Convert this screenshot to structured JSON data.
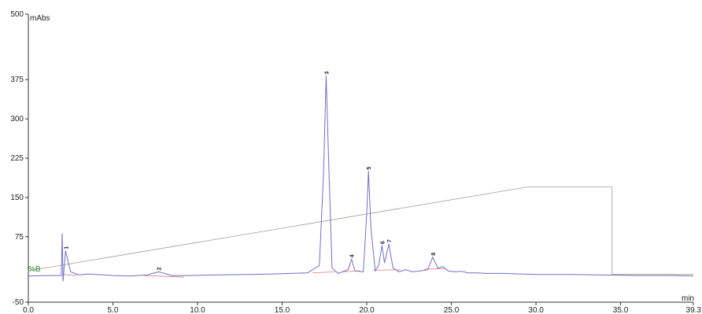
{
  "chart_data": {
    "type": "line",
    "y_unit_label": "mAbs",
    "x_unit_label": "min",
    "secondary_label": "%B",
    "xlim": [
      0.0,
      39.3
    ],
    "ylim": [
      -50,
      500
    ],
    "x_ticks": [
      {
        "value": 0.0,
        "label": "0.0"
      },
      {
        "value": 5.0,
        "label": "5.0"
      },
      {
        "value": 10.0,
        "label": "10.0"
      },
      {
        "value": 15.0,
        "label": "15.0"
      },
      {
        "value": 20.0,
        "label": "20.0"
      },
      {
        "value": 25.0,
        "label": "25.0"
      },
      {
        "value": 30.0,
        "label": "30.0"
      },
      {
        "value": 35.0,
        "label": "35.0"
      },
      {
        "value": 39.3,
        "label": "39.3"
      }
    ],
    "y_ticks": [
      {
        "value": -50,
        "label": "-50"
      },
      {
        "value": 75,
        "label": "75"
      },
      {
        "value": 150,
        "label": "150"
      },
      {
        "value": 225,
        "label": "225"
      },
      {
        "value": 300,
        "label": "300"
      },
      {
        "value": 375,
        "label": "375"
      },
      {
        "value": 500,
        "label": "500"
      }
    ],
    "colors": {
      "trace": "#6f6fc8",
      "gradient": "#a89a8e",
      "baseline": "#e07a7a",
      "pb_label": "#2a8a2a",
      "axis": "#333333"
    },
    "baseline_level": 0,
    "peaks": [
      {
        "label": "1",
        "time": 2.2,
        "height": 48
      },
      {
        "label": "2",
        "time": 7.7,
        "height": 8
      },
      {
        "label": "3",
        "time": 17.6,
        "height": 382
      },
      {
        "label": "4",
        "time": 19.1,
        "height": 32
      },
      {
        "label": "5",
        "time": 20.1,
        "height": 200
      },
      {
        "label": "6",
        "time": 20.9,
        "height": 58
      },
      {
        "label": "7",
        "time": 21.3,
        "height": 61
      },
      {
        "label": "8",
        "time": 23.9,
        "height": 36
      }
    ],
    "trace_points": [
      [
        0.0,
        0
      ],
      [
        1.0,
        1
      ],
      [
        1.95,
        1
      ],
      [
        2.0,
        82
      ],
      [
        2.05,
        -10
      ],
      [
        2.2,
        48
      ],
      [
        2.5,
        8
      ],
      [
        3.0,
        2
      ],
      [
        3.5,
        4
      ],
      [
        4.0,
        3
      ],
      [
        5.0,
        1
      ],
      [
        6.0,
        0
      ],
      [
        7.0,
        2
      ],
      [
        7.7,
        8
      ],
      [
        8.5,
        1
      ],
      [
        9.5,
        1
      ],
      [
        11.0,
        2
      ],
      [
        13.0,
        3
      ],
      [
        14.5,
        4
      ],
      [
        15.5,
        5
      ],
      [
        16.5,
        6
      ],
      [
        17.2,
        20
      ],
      [
        17.45,
        200
      ],
      [
        17.6,
        382
      ],
      [
        17.75,
        220
      ],
      [
        17.95,
        15
      ],
      [
        18.3,
        5
      ],
      [
        18.9,
        12
      ],
      [
        19.1,
        32
      ],
      [
        19.3,
        10
      ],
      [
        19.8,
        8
      ],
      [
        20.0,
        120
      ],
      [
        20.1,
        200
      ],
      [
        20.25,
        90
      ],
      [
        20.5,
        10
      ],
      [
        20.7,
        20
      ],
      [
        20.9,
        58
      ],
      [
        21.05,
        25
      ],
      [
        21.3,
        61
      ],
      [
        21.55,
        15
      ],
      [
        21.9,
        8
      ],
      [
        22.3,
        12
      ],
      [
        22.7,
        8
      ],
      [
        23.2,
        10
      ],
      [
        23.6,
        12
      ],
      [
        23.9,
        36
      ],
      [
        24.2,
        15
      ],
      [
        24.5,
        18
      ],
      [
        24.8,
        10
      ],
      [
        25.2,
        8
      ],
      [
        25.6,
        9
      ],
      [
        26.0,
        6
      ],
      [
        26.5,
        6
      ],
      [
        27.0,
        5
      ],
      [
        28.0,
        5
      ],
      [
        29.0,
        4
      ],
      [
        30.0,
        3
      ],
      [
        32.0,
        3
      ],
      [
        34.0,
        2
      ],
      [
        36.0,
        1
      ],
      [
        38.0,
        1
      ],
      [
        39.3,
        0
      ]
    ],
    "gradient_points": [
      [
        0.0,
        10
      ],
      [
        29.5,
        170
      ],
      [
        34.5,
        170
      ],
      [
        34.5,
        3
      ],
      [
        39.3,
        3
      ]
    ],
    "baseline_segments": [
      [
        [
          2.05,
          3
        ],
        [
          2.9,
          1
        ]
      ],
      [
        [
          6.8,
          1
        ],
        [
          9.2,
          -2
        ]
      ],
      [
        [
          16.8,
          6
        ],
        [
          18.1,
          8
        ]
      ],
      [
        [
          18.6,
          8
        ],
        [
          19.6,
          10
        ]
      ],
      [
        [
          20.4,
          11
        ],
        [
          22.0,
          12
        ]
      ],
      [
        [
          23.4,
          13
        ],
        [
          24.6,
          14
        ]
      ]
    ]
  }
}
